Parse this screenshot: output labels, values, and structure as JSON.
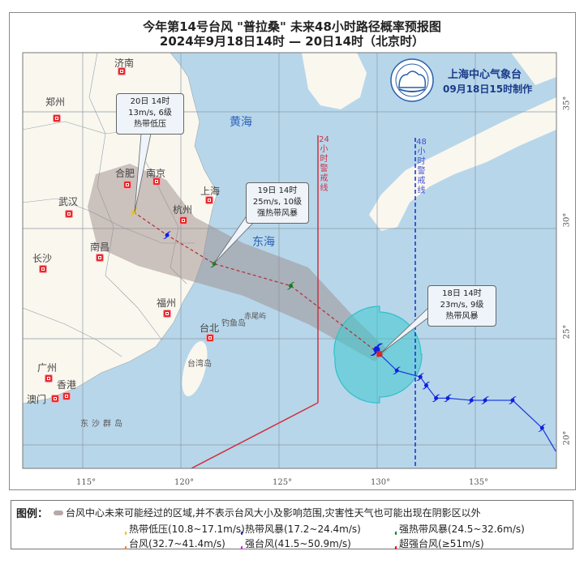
{
  "title": "今年第14号台风 \"普拉桑\" 未来48小时路径概率预报图",
  "subtitle": "2024年9月18日14时 — 20日14时（北京时）",
  "issuer": {
    "name": "上海中心气象台",
    "issued": "09月18日15时制作",
    "color": "#1a3a8a"
  },
  "colors": {
    "ocean": "#b7d6ea",
    "land": "#faf7ef",
    "cone": "#9c8c8c",
    "wind_circle": "#40c8d0",
    "line24": "#d03040",
    "line48": "#1030d0",
    "past_track": "#2040e0",
    "forecast_track": "#b03030"
  },
  "axes": {
    "lon_ticks": [
      "115°",
      "120°",
      "125°",
      "130°",
      "135°"
    ],
    "lat_ticks": [
      "35°",
      "30°",
      "25°",
      "20°"
    ]
  },
  "warning_lines": {
    "line24": "24小时警戒线",
    "line48": "48小时警戒线"
  },
  "seas": [
    "黄海",
    "东海"
  ],
  "cities": [
    "济南",
    "郑州",
    "合肥",
    "南京",
    "上海",
    "杭州",
    "武汉",
    "南昌",
    "长沙",
    "福州",
    "台北",
    "广州",
    "香港",
    "澳门"
  ],
  "islands": [
    "钓鱼岛",
    "赤尾屿",
    "台湾岛",
    "东沙群岛"
  ],
  "current": {
    "lon": 130.1,
    "lat": 24.3,
    "time": "18日 14时",
    "wind": "23m/s, 9级",
    "level": "热带风暴"
  },
  "forecasts": [
    {
      "lon": 125.6,
      "lat": 27.4,
      "class": "strong_ts"
    },
    {
      "lon": 121.7,
      "lat": 28.4,
      "class": "strong_ts",
      "time": "19日 14时",
      "wind": "25m/s, 10级",
      "level": "强热带风暴"
    },
    {
      "lon": 119.3,
      "lat": 29.7,
      "class": "ts"
    },
    {
      "lon": 117.6,
      "lat": 30.7,
      "class": "td",
      "time": "20日 14时",
      "wind": "13m/s, 6级",
      "level": "热带低压"
    }
  ],
  "past_track": [
    [
      139.1,
      19.7
    ],
    [
      138.4,
      20.8
    ],
    [
      136.9,
      22.1
    ],
    [
      135.5,
      22.1
    ],
    [
      134.8,
      22.1
    ],
    [
      133.6,
      22.2
    ],
    [
      133.0,
      22.2
    ],
    [
      132.5,
      22.8
    ],
    [
      132.2,
      23.2
    ],
    [
      131.0,
      23.5
    ],
    [
      130.1,
      24.3
    ]
  ],
  "legend": {
    "label": "图例：",
    "cone_text": "台风中心未来可能经过的区域,并不表示台风大小及影响范围,灾害性天气也可能出现在阴影区以外",
    "classes": [
      {
        "key": "td",
        "label": "热带低压(10.8~17.1m/s)",
        "color": "#f0c020"
      },
      {
        "key": "ts",
        "label": "热带风暴(17.2~24.4m/s)",
        "color": "#1020e0"
      },
      {
        "key": "strong_ts",
        "label": "强热带风暴(24.5~32.6m/s)",
        "color": "#108020"
      },
      {
        "key": "ty",
        "label": "台风(32.7~41.4m/s)",
        "color": "#f08030"
      },
      {
        "key": "sty",
        "label": "强台风(41.5~50.9m/s)",
        "color": "#e020e0"
      },
      {
        "key": "super",
        "label": "超强台风(≥51m/s)",
        "color": "#e01010"
      }
    ]
  }
}
